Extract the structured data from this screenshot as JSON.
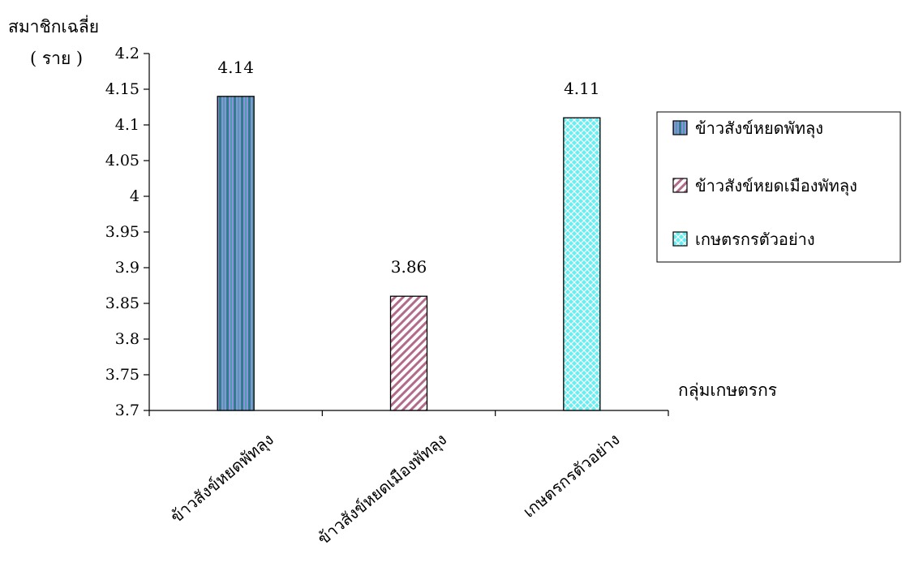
{
  "chart_data": {
    "type": "bar",
    "ylabel": "สมาชิกเฉลี่ย",
    "yunit": "( ราย )",
    "xlabel": "กลุ่มเกษตรกร",
    "ylim": [
      3.7,
      4.2
    ],
    "ytick_step": 0.05,
    "yticks": [
      "3.7",
      "3.75",
      "3.8",
      "3.85",
      "3.9",
      "3.95",
      "4",
      "4.05",
      "4.1",
      "4.15",
      "4.2"
    ],
    "categories": [
      "ข้าวสังข์หยดพัทลุง",
      "ข้าวสังข์หยดเมืองพัทลุง",
      "เกษตรกรตัวอย่าง"
    ],
    "values": [
      4.14,
      3.86,
      4.11
    ],
    "data_labels": [
      "4.14",
      "3.86",
      "4.11"
    ],
    "legend": [
      "ข้าวสังข์หยดพัทลุง",
      "ข้าวสังข์หยดเมืองพัทลุง",
      "เกษตรกรตัวอย่าง"
    ],
    "legend_position": "right",
    "grid": false,
    "colors": {
      "bar1_stripe_a": "#2f7f8a",
      "bar1_stripe_b": "#8f8fe0",
      "bar2_stripe": "#b36b8c",
      "bar3_fill": "#66eef0",
      "bar3_hatch": "#ffffff",
      "axis": "#000000"
    }
  }
}
